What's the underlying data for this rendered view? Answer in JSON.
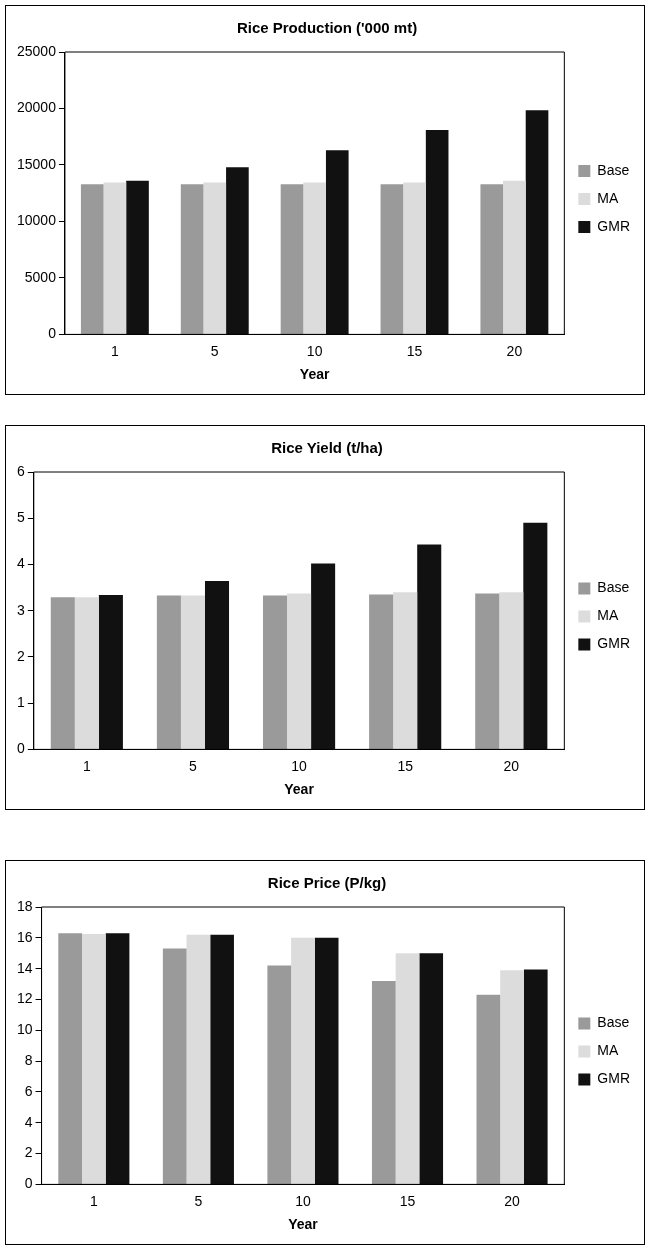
{
  "chart_data": [
    {
      "type": "bar",
      "title": "Rice Production ('000 mt)",
      "xlabel": "Year",
      "categories": [
        "1",
        "5",
        "10",
        "15",
        "20"
      ],
      "series": [
        {
          "name": "Base",
          "color": "#9a9a9a",
          "values": [
            13300,
            13300,
            13300,
            13300,
            13300
          ]
        },
        {
          "name": "MA",
          "color": "#dcdcdc",
          "values": [
            13450,
            13450,
            13450,
            13450,
            13600
          ]
        },
        {
          "name": "GMR",
          "color": "#111111",
          "values": [
            13600,
            14800,
            16300,
            18100,
            19850
          ]
        }
      ],
      "ylim": [
        0,
        25000
      ],
      "yticks": [
        0,
        5000,
        10000,
        15000,
        20000,
        25000
      ],
      "grid": false,
      "legend": "right"
    },
    {
      "type": "bar",
      "title": "Rice Yield (t/ha)",
      "xlabel": "Year",
      "categories": [
        "1",
        "5",
        "10",
        "15",
        "20"
      ],
      "series": [
        {
          "name": "Base",
          "color": "#9a9a9a",
          "values": [
            3.29,
            3.33,
            3.33,
            3.35,
            3.37
          ]
        },
        {
          "name": "MA",
          "color": "#dcdcdc",
          "values": [
            3.29,
            3.33,
            3.37,
            3.4,
            3.4
          ]
        },
        {
          "name": "GMR",
          "color": "#111111",
          "values": [
            3.34,
            3.64,
            4.02,
            4.43,
            4.9
          ]
        }
      ],
      "ylim": [
        0,
        6
      ],
      "yticks": [
        0,
        1,
        2,
        3,
        4,
        5,
        6
      ],
      "grid": false,
      "legend": "right"
    },
    {
      "type": "bar",
      "title": "Rice Price (P/kg)",
      "xlabel": "Year",
      "categories": [
        "1",
        "5",
        "10",
        "15",
        "20"
      ],
      "series": [
        {
          "name": "Base",
          "color": "#9a9a9a",
          "values": [
            16.3,
            15.3,
            14.2,
            13.2,
            12.3
          ]
        },
        {
          "name": "MA",
          "color": "#dcdcdc",
          "values": [
            16.25,
            16.2,
            16.0,
            15.0,
            13.9
          ]
        },
        {
          "name": "GMR",
          "color": "#111111",
          "values": [
            16.3,
            16.2,
            16.0,
            15.0,
            13.95
          ]
        }
      ],
      "ylim": [
        0,
        18
      ],
      "yticks": [
        0,
        2,
        4,
        6,
        8,
        10,
        12,
        14,
        16,
        18
      ],
      "grid": false,
      "legend": "right"
    }
  ]
}
